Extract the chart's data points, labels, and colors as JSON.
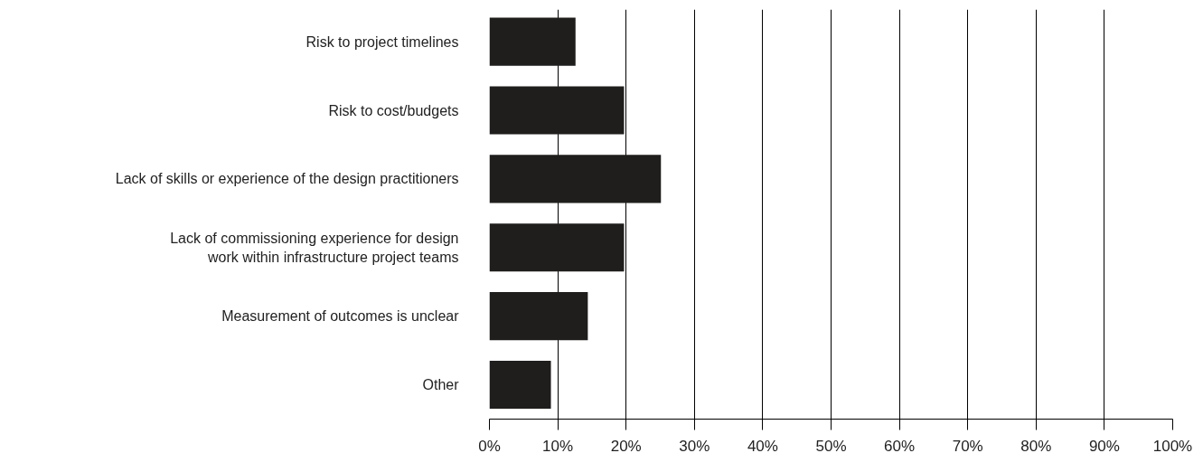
{
  "chart_data": {
    "type": "bar",
    "orientation": "horizontal",
    "categories": [
      "Risk to project timelines",
      "Risk to cost/budgets",
      "Lack of skills or experience of the design practitioners",
      "Lack of commissioning experience for design\nwork within infrastructure project teams",
      "Measurement of outcomes is unclear",
      "Other"
    ],
    "values": [
      12.6,
      19.7,
      25.1,
      19.7,
      14.4,
      9.0
    ],
    "color": "#1f1e1c",
    "xlim": [
      0,
      100
    ],
    "xticks": [
      {
        "value": 0,
        "label": "0%"
      },
      {
        "value": 10,
        "label": "10%"
      },
      {
        "value": 20,
        "label": "20%"
      },
      {
        "value": 30,
        "label": "30%"
      },
      {
        "value": 40,
        "label": "40%"
      },
      {
        "value": 50,
        "label": "50%"
      },
      {
        "value": 60,
        "label": "60%"
      },
      {
        "value": 70,
        "label": "70%"
      },
      {
        "value": 80,
        "label": "80%"
      },
      {
        "value": 90,
        "label": "90%"
      },
      {
        "value": 100,
        "label": "100%"
      }
    ],
    "grid": "x"
  }
}
